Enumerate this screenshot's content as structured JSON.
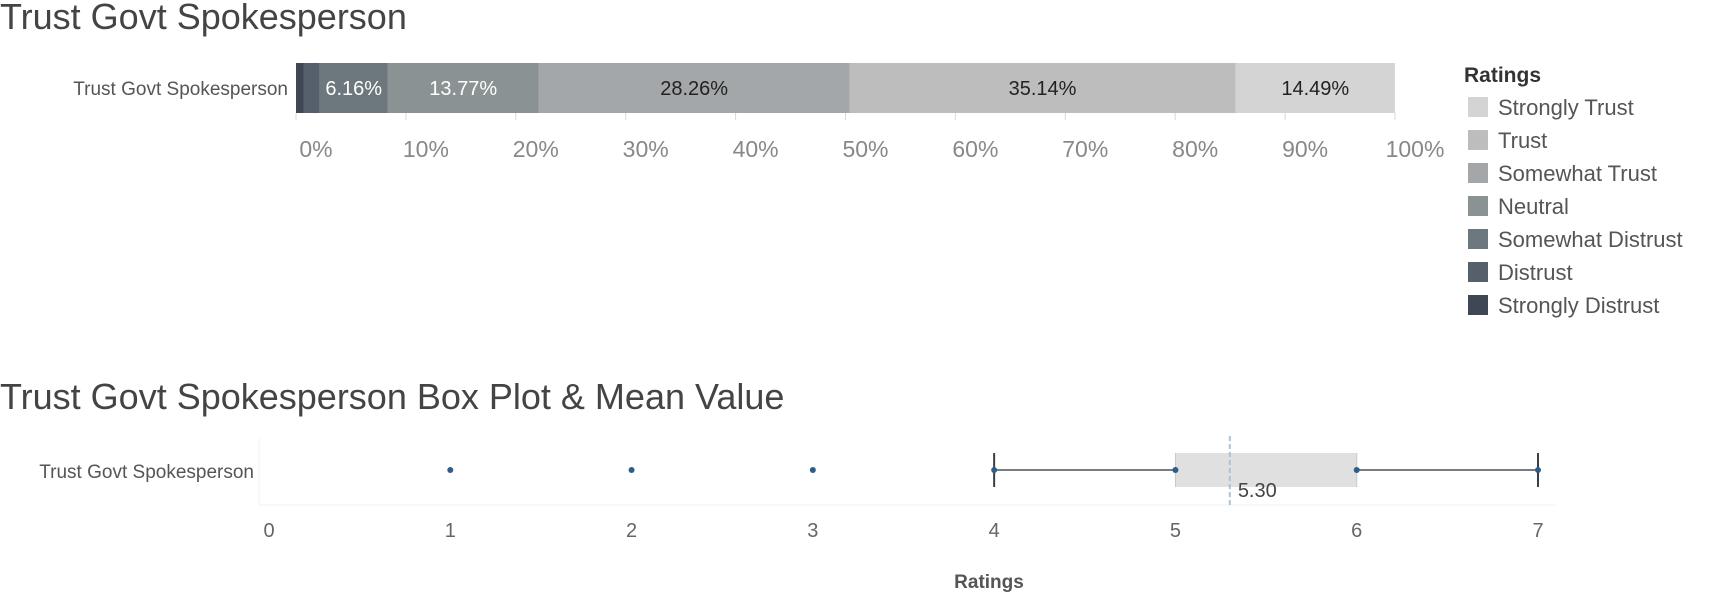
{
  "colors": {
    "Strongly Trust": "#d4d4d4",
    "Trust": "#bdbdbd",
    "Somewhat Trust": "#a3a7a9",
    "Neutral": "#8a9294",
    "Somewhat Distrust": "#6c777e",
    "Distrust": "#565f6c",
    "Strongly Distrust": "#3f4654",
    "box_fill": "#e0e0e0",
    "whisker": "#4a5258",
    "point": "#2f5d8a",
    "mean_line": "#a9c3d8"
  },
  "chart_data": [
    {
      "type": "bar",
      "orientation": "horizontal-stacked-100",
      "title": "Trust Govt Spokesperson",
      "categories": [
        "Trust Govt Spokesperson"
      ],
      "series": [
        {
          "name": "Strongly Distrust",
          "values": [
            0.72
          ],
          "label": ""
        },
        {
          "name": "Distrust",
          "values": [
            1.45
          ],
          "label": ""
        },
        {
          "name": "Somewhat Distrust",
          "values": [
            6.16
          ],
          "label": "6.16%"
        },
        {
          "name": "Neutral",
          "values": [
            13.77
          ],
          "label": "13.77%"
        },
        {
          "name": "Somewhat Trust",
          "values": [
            28.26
          ],
          "label": "28.26%"
        },
        {
          "name": "Trust",
          "values": [
            35.14
          ],
          "label": "35.14%"
        },
        {
          "name": "Strongly Trust",
          "values": [
            14.49
          ],
          "label": "14.49%"
        }
      ],
      "xlim": [
        0,
        100
      ],
      "xticks": [
        "0%",
        "10%",
        "20%",
        "30%",
        "40%",
        "50%",
        "60%",
        "70%",
        "80%",
        "90%",
        "100%"
      ],
      "legend": {
        "title": "Ratings",
        "position": "right",
        "entries": [
          "Strongly Trust",
          "Trust",
          "Somewhat Trust",
          "Neutral",
          "Somewhat Distrust",
          "Distrust",
          "Strongly Distrust"
        ]
      }
    },
    {
      "type": "box",
      "title": "Trust Govt Spokesperson Box Plot & Mean Value",
      "category": "Trust Govt Spokesperson",
      "xlabel": "Ratings",
      "xlim": [
        0,
        7
      ],
      "xticks": [
        "0",
        "1",
        "2",
        "3",
        "4",
        "5",
        "6",
        "7"
      ],
      "whisker_low": 4,
      "q1": 5,
      "q3": 6,
      "whisker_high": 7,
      "mean": 5.3,
      "mean_label": "5.30",
      "points": [
        1,
        2,
        3,
        4,
        5,
        6,
        7
      ]
    }
  ]
}
